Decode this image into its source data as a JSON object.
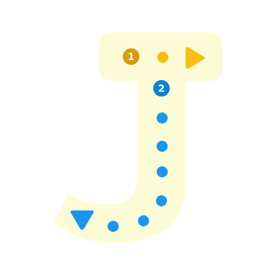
{
  "letter": "J",
  "colors": {
    "letter_fill": "#fbfbd6",
    "stroke_one": "#f9bd10",
    "stroke_one_badge": "#d89b0e",
    "stroke_two": "#1a96ee",
    "stroke_two_badge": "#1082cf"
  },
  "strokes": [
    {
      "number": "1",
      "direction": "right",
      "badge_icon": "number-one-badge-icon",
      "arrow_icon": "arrow-right-icon"
    },
    {
      "number": "2",
      "direction": "down-then-left",
      "badge_icon": "number-two-badge-icon",
      "arrow_icon": "arrow-down-icon"
    }
  ]
}
